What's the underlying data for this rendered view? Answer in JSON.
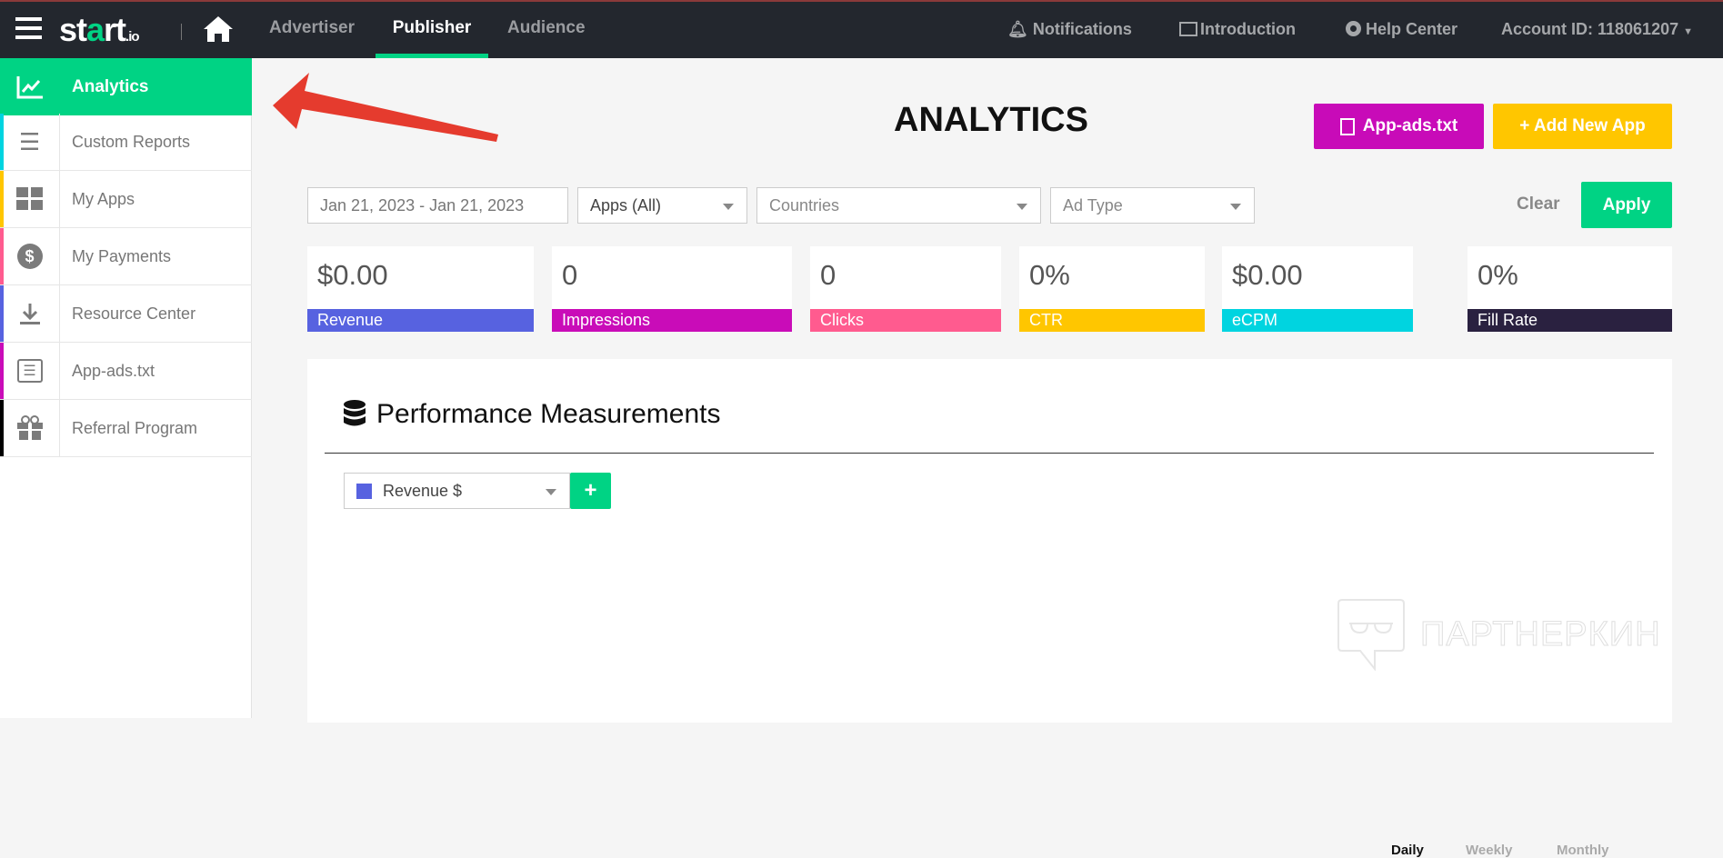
{
  "navbar": {
    "logo": "start.io",
    "tabs": [
      {
        "label": "Advertiser"
      },
      {
        "label": "Publisher",
        "active": true
      },
      {
        "label": "Audience"
      }
    ],
    "right": [
      {
        "label": "Notifications",
        "icon": "bell-icon"
      },
      {
        "label": "Introduction",
        "icon": "presentation-icon"
      },
      {
        "label": "Help Center",
        "icon": "lifebuoy-icon"
      },
      {
        "label": "Account ID: 118061207",
        "icon": "caret-down-icon"
      }
    ]
  },
  "sidebar": {
    "items": [
      {
        "label": "Analytics",
        "icon": "chart-line-icon",
        "active": true
      },
      {
        "label": "Custom Reports",
        "icon": "list-icon",
        "color": "#00d4e0"
      },
      {
        "label": "My Apps",
        "icon": "grid-icon",
        "color": "#ffc600"
      },
      {
        "label": "My Payments",
        "icon": "dollar-circle-icon",
        "color": "#ff5b8f"
      },
      {
        "label": "Resource Center",
        "icon": "download-icon",
        "color": "#5762e0"
      },
      {
        "label": "App-ads.txt",
        "icon": "list-box-icon",
        "color": "#c90cb8"
      },
      {
        "label": "Referral Program",
        "icon": "gift-icon",
        "color": "#000000"
      }
    ]
  },
  "header": {
    "title": "ANALYTICS",
    "app_ads_button": "App-ads.txt",
    "add_app_button": "+ Add New App"
  },
  "filters": {
    "date_range": "Jan 21, 2023 - Jan 21, 2023",
    "apps": "Apps (All)",
    "countries": "Countries",
    "ad_type": "Ad Type",
    "clear": "Clear",
    "apply": "Apply"
  },
  "metrics": [
    {
      "value": "$0.00",
      "label": "Revenue",
      "color": "#5762e0"
    },
    {
      "value": "0",
      "label": "Impressions",
      "color": "#c90cb8"
    },
    {
      "value": "0",
      "label": "Clicks",
      "color": "#ff5b8f"
    },
    {
      "value": "0%",
      "label": "CTR",
      "color": "#ffc600"
    },
    {
      "value": "$0.00",
      "label": "eCPM",
      "color": "#00d4e0"
    },
    {
      "value": "0%",
      "label": "Fill Rate",
      "color": "#2a2140"
    }
  ],
  "performance": {
    "title": "Performance Measurements",
    "metric_select": "Revenue $",
    "metric_color": "#5762e0",
    "add": "+",
    "periods": [
      "Daily",
      "Weekly",
      "Monthly"
    ],
    "active_period": "Daily"
  },
  "watermark": "ПАРТНЕРКИН",
  "colors": {
    "accent": "#00d384",
    "nav_bg": "#23272e"
  }
}
